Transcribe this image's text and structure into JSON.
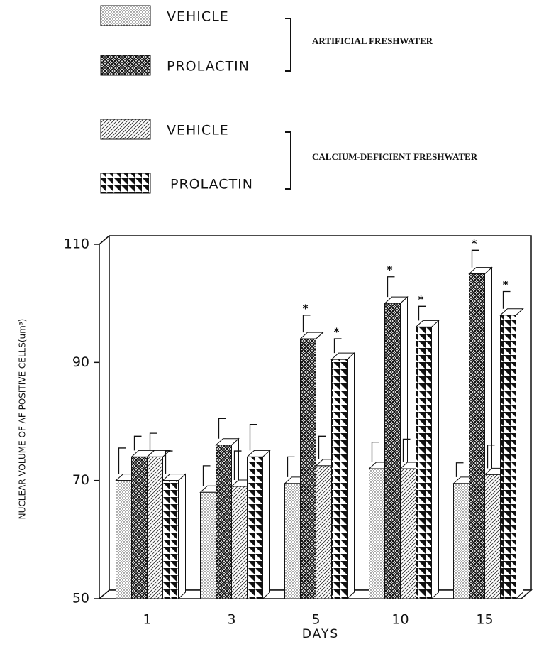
{
  "chart_data": {
    "type": "bar3d",
    "groups": [
      "ARTIFICIAL FRESHWATER",
      "CALCIUM-DEFICIENT FRESHWATER"
    ],
    "xlabel": "DAYS",
    "ylabel": "NUCLEAR VOLUME OF AF POSITIVE CELLS(um³)",
    "categories": [
      "1",
      "3",
      "5",
      "10",
      "15"
    ],
    "series": [
      {
        "name": "VEHICLE",
        "pattern": "dots",
        "values": [
          70,
          68,
          69.5,
          72,
          69.5
        ],
        "errors": [
          5.5,
          4.5,
          4.5,
          4.5,
          3.5
        ],
        "labels": [
          null,
          null,
          null,
          null,
          null
        ]
      },
      {
        "name": "PROLACTIN",
        "pattern": "weave",
        "values": [
          74,
          76,
          94,
          100,
          105
        ],
        "errors": [
          3.5,
          4.5,
          4,
          4.5,
          4
        ],
        "labels": [
          null,
          null,
          "*",
          "*",
          "*"
        ]
      },
      {
        "name": "VEHICLE",
        "pattern": "diagonal",
        "values": [
          74,
          69,
          72.5,
          72,
          71
        ],
        "errors": [
          4,
          6,
          5,
          5,
          5
        ],
        "labels": [
          null,
          null,
          null,
          null,
          null
        ]
      },
      {
        "name": "PROLACTIN",
        "pattern": "triangles",
        "values": [
          70,
          74,
          90.5,
          96,
          98
        ],
        "errors": [
          5,
          5.5,
          3.5,
          3.5,
          4
        ],
        "labels": [
          null,
          null,
          "*",
          "*",
          "*"
        ]
      }
    ],
    "ylim": [
      50,
      110
    ],
    "yticks": [
      50,
      70,
      90,
      110
    ]
  }
}
